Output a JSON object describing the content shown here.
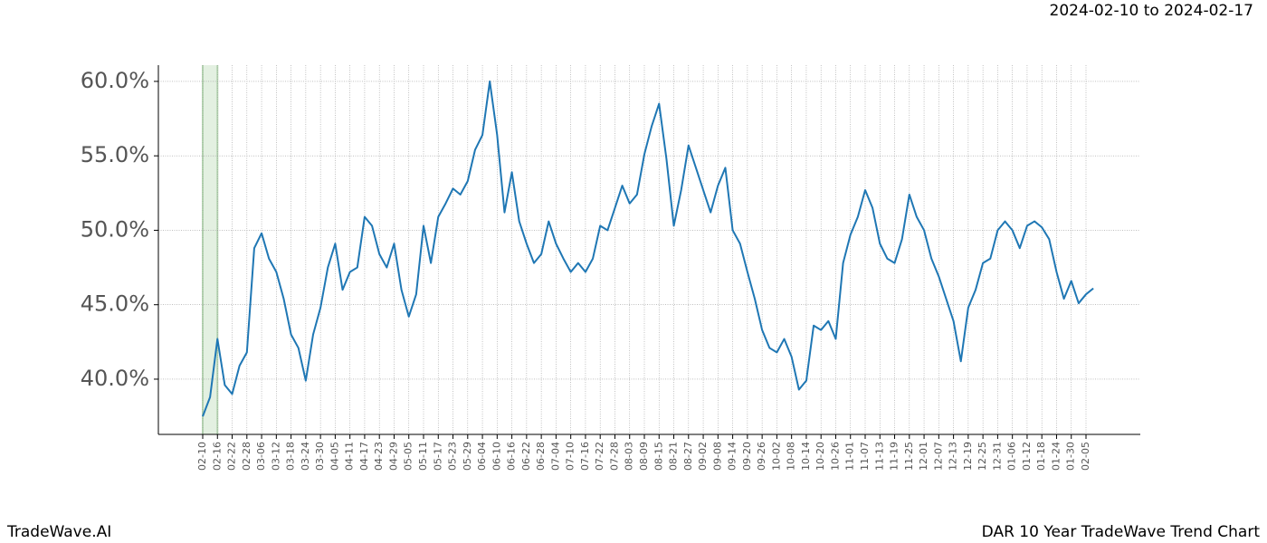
{
  "chart_data": {
    "type": "line",
    "title": "DAR 10 Year TradeWave Trend Chart",
    "subtitle": "2024-02-10 to 2024-02-17",
    "brand": "TradeWave.AI",
    "categories": [
      "02-10",
      null,
      "02-16",
      null,
      "02-22",
      null,
      "02-28",
      null,
      "03-06",
      null,
      "03-12",
      null,
      "03-18",
      null,
      "03-24",
      null,
      "03-30",
      null,
      "04-05",
      null,
      "04-11",
      null,
      "04-17",
      null,
      "04-23",
      null,
      "04-29",
      null,
      "05-05",
      null,
      "05-11",
      null,
      "05-17",
      null,
      "05-23",
      null,
      "05-29",
      null,
      "06-04",
      null,
      "06-10",
      null,
      "06-16",
      null,
      "06-22",
      null,
      "06-28",
      null,
      "07-04",
      null,
      "07-10",
      null,
      "07-16",
      null,
      "07-22",
      null,
      "07-28",
      null,
      "08-03",
      null,
      "08-09",
      null,
      "08-15",
      null,
      "08-21",
      null,
      "08-27",
      null,
      "09-02",
      null,
      "09-08",
      null,
      "09-14",
      null,
      "09-20",
      null,
      "09-26",
      null,
      "10-02",
      null,
      "10-08",
      null,
      "10-14",
      null,
      "10-20",
      null,
      "10-26",
      null,
      "11-01",
      null,
      "11-07",
      null,
      "11-13",
      null,
      "11-19",
      null,
      "11-25",
      null,
      "12-01",
      null,
      "12-07",
      null,
      "12-13",
      null,
      "12-19",
      null,
      "12-25",
      null,
      "12-31",
      null,
      "01-06",
      null,
      "01-12",
      null,
      "01-18",
      null,
      "01-24",
      null,
      "01-30",
      null,
      "02-05",
      null
    ],
    "values": [
      37.5,
      38.8,
      42.7,
      39.6,
      39.0,
      40.9,
      41.8,
      48.8,
      49.8,
      48.1,
      47.2,
      45.4,
      43.0,
      42.1,
      39.9,
      43.0,
      44.8,
      47.5,
      49.1,
      46.0,
      47.2,
      47.5,
      50.9,
      50.3,
      48.4,
      47.5,
      49.1,
      46.0,
      44.2,
      45.7,
      50.3,
      47.8,
      50.9,
      51.8,
      52.8,
      52.4,
      53.3,
      55.4,
      56.4,
      60.0,
      56.4,
      51.2,
      53.9,
      50.6,
      49.1,
      47.8,
      48.4,
      50.6,
      49.1,
      48.1,
      47.2,
      47.8,
      47.2,
      48.1,
      50.3,
      50.0,
      51.5,
      53.0,
      51.8,
      52.4,
      55.1,
      57.0,
      58.5,
      54.8,
      50.3,
      52.7,
      55.7,
      54.2,
      52.7,
      51.2,
      53.0,
      54.2,
      50.0,
      49.1,
      47.2,
      45.4,
      43.3,
      42.1,
      41.8,
      42.7,
      41.5,
      39.3,
      39.9,
      43.6,
      43.3,
      43.9,
      42.7,
      47.8,
      49.7,
      50.9,
      52.7,
      51.5,
      49.1,
      48.1,
      47.8,
      49.4,
      52.4,
      50.9,
      50.0,
      48.1,
      46.9,
      45.4,
      43.9,
      41.2,
      44.8,
      46.0,
      47.8,
      48.1,
      50.0,
      50.6,
      50.0,
      48.8,
      50.3,
      50.6,
      50.2,
      49.4,
      47.2,
      45.4,
      46.6,
      45.1,
      45.7,
      46.1
    ],
    "color": "#1f77b4",
    "ylim": [
      36.29,
      61.09
    ],
    "yticks": [
      {
        "value": 40,
        "label": "40.0%"
      },
      {
        "value": 45,
        "label": "45.0%"
      },
      {
        "value": 50,
        "label": "50.0%"
      },
      {
        "value": 55,
        "label": "55.0%"
      },
      {
        "value": 60,
        "label": "60.0%"
      }
    ],
    "grid": true
  }
}
